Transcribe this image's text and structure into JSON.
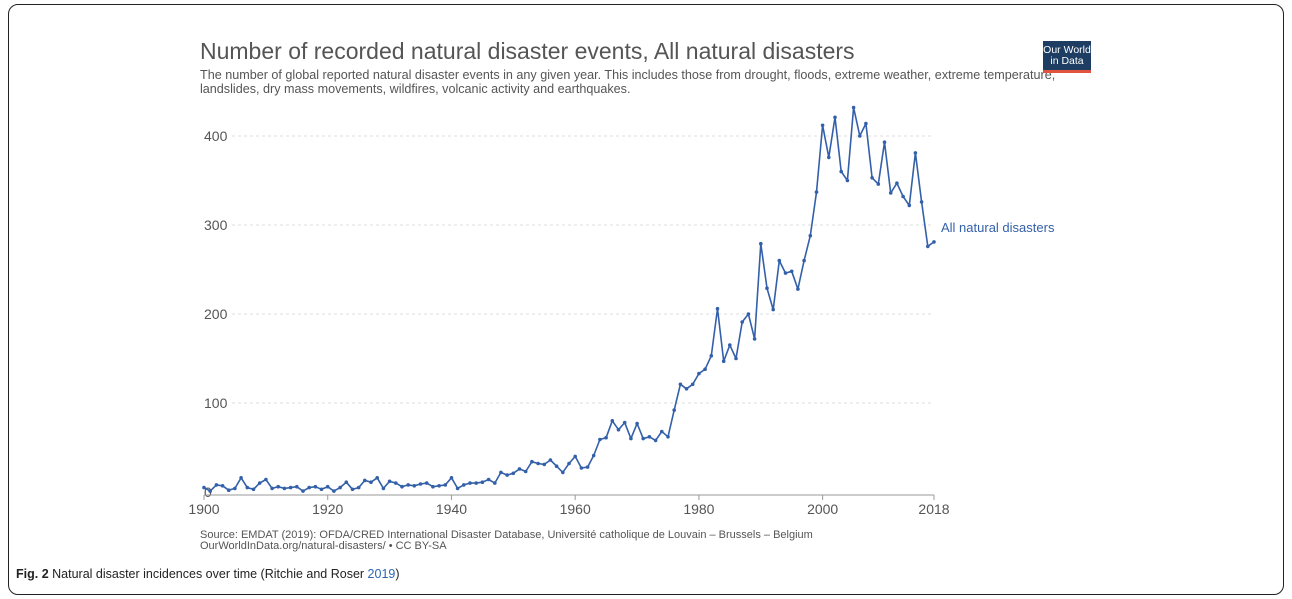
{
  "title": "Number of recorded natural disaster events, All natural disasters",
  "subtitle": "The number of global reported natural disaster events in any given year. This includes those from drought, floods, extreme weather, extreme temperature, landslides, dry mass movements, wildfires, volcanic activity and earthquakes.",
  "logo": {
    "line1": "Our World",
    "line2": "in Data"
  },
  "source": {
    "line1": "Source: EMDAT (2019): OFDA/CRED International Disaster Database, Université catholique de Louvain – Brussels – Belgium",
    "line2": "OurWorldInData.org/natural-disasters/ • CC BY-SA"
  },
  "caption": {
    "label": "Fig. 2",
    "text": " Natural disaster incidences over time (Ritchie and Roser ",
    "cite_year": "2019",
    "close": ")"
  },
  "colors": {
    "line": "#3360a9",
    "grid": "#dddddd",
    "text": "#555555",
    "logo_bg": "#1d3d63",
    "logo_accent": "#e0543f"
  },
  "chart_data": {
    "type": "line",
    "x_ticks": [
      "1900",
      "1920",
      "1940",
      "1960",
      "1980",
      "2000",
      "2018"
    ],
    "y_ticks": [
      "0",
      "100",
      "200",
      "300",
      "400"
    ],
    "xlim": [
      1900,
      2018
    ],
    "ylim": [
      0,
      440
    ],
    "grid": "horizontal dashed",
    "series": [
      {
        "name": "All natural disasters",
        "x": [
          1900,
          1901,
          1902,
          1903,
          1904,
          1905,
          1906,
          1907,
          1908,
          1909,
          1910,
          1911,
          1912,
          1913,
          1914,
          1915,
          1916,
          1917,
          1918,
          1919,
          1920,
          1921,
          1922,
          1923,
          1924,
          1925,
          1926,
          1927,
          1928,
          1929,
          1930,
          1931,
          1932,
          1933,
          1934,
          1935,
          1936,
          1937,
          1938,
          1939,
          1940,
          1941,
          1942,
          1943,
          1944,
          1945,
          1946,
          1947,
          1948,
          1949,
          1950,
          1951,
          1952,
          1953,
          1954,
          1955,
          1956,
          1957,
          1958,
          1959,
          1960,
          1961,
          1962,
          1963,
          1964,
          1965,
          1966,
          1967,
          1968,
          1969,
          1970,
          1971,
          1972,
          1973,
          1974,
          1975,
          1976,
          1977,
          1978,
          1979,
          1980,
          1981,
          1982,
          1983,
          1984,
          1985,
          1986,
          1987,
          1988,
          1989,
          1990,
          1991,
          1992,
          1993,
          1994,
          1995,
          1996,
          1997,
          1998,
          1999,
          2000,
          2001,
          2002,
          2003,
          2004,
          2005,
          2006,
          2007,
          2008,
          2009,
          2010,
          2011,
          2012,
          2013,
          2014,
          2015,
          2016,
          2017,
          2018
        ],
        "y": [
          5,
          1,
          8,
          7,
          2,
          4,
          16,
          5,
          3,
          10,
          14,
          4,
          6,
          4,
          5,
          6,
          1,
          5,
          6,
          3,
          6,
          1,
          5,
          11,
          3,
          5,
          13,
          11,
          16,
          4,
          12,
          10,
          6,
          8,
          7,
          9,
          10,
          6,
          7,
          8,
          16,
          4,
          8,
          10,
          10,
          11,
          14,
          10,
          22,
          19,
          21,
          26,
          23,
          34,
          32,
          31,
          36,
          29,
          22,
          32,
          40,
          27,
          28,
          41,
          59,
          61,
          80,
          70,
          78,
          60,
          77,
          60,
          62,
          58,
          68,
          62,
          92,
          121,
          116,
          121,
          133,
          138,
          153,
          206,
          147,
          165,
          150,
          191,
          200,
          172,
          279,
          229,
          205,
          260,
          246,
          248,
          228,
          260,
          288,
          337,
          412,
          376,
          421,
          360,
          350,
          432,
          400,
          414,
          353,
          346,
          393,
          336,
          347,
          332,
          322,
          381,
          326,
          276,
          281
        ]
      }
    ]
  }
}
